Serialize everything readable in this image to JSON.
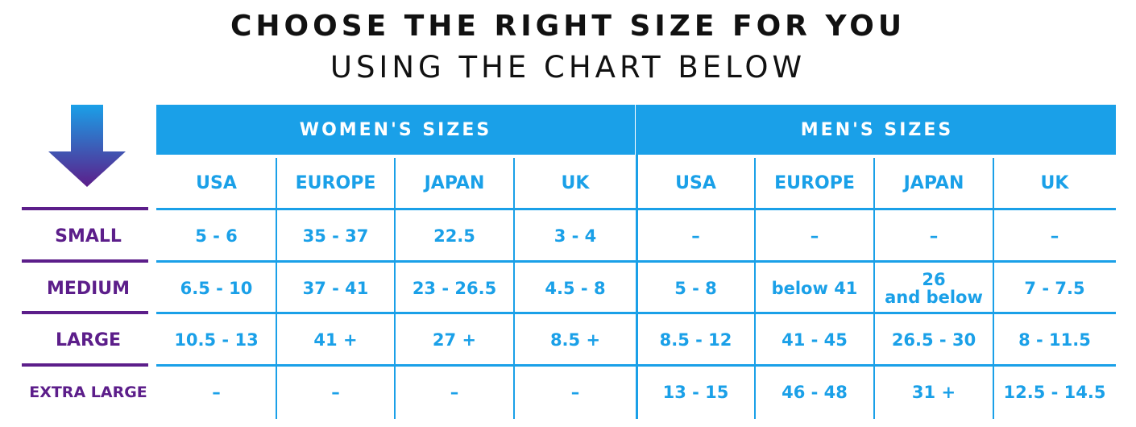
{
  "title": "CHOOSE THE RIGHT SIZE FOR YOU",
  "subtitle": "USING THE CHART BELOW",
  "colors": {
    "blue": "#1aa0e8",
    "purple": "#5c1e8a",
    "arrow_top": "#1aa0e8",
    "arrow_bottom": "#5c1e8a"
  },
  "icon": "arrow-down-icon",
  "chart_data": {
    "type": "table",
    "groups": [
      {
        "name": "WOMEN'S SIZES",
        "columns": [
          "USA",
          "EUROPE",
          "JAPAN",
          "UK"
        ]
      },
      {
        "name": "MEN'S SIZES",
        "columns": [
          "USA",
          "EUROPE",
          "JAPAN",
          "UK"
        ]
      }
    ],
    "rows": [
      {
        "label": "SMALL",
        "cells": [
          "5 - 6",
          "35 - 37",
          "22.5",
          "3 - 4",
          "–",
          "–",
          "–",
          "–"
        ]
      },
      {
        "label": "MEDIUM",
        "cells": [
          "6.5 - 10",
          "37 - 41",
          "23 - 26.5",
          "4.5 - 8",
          "5 - 8",
          "below 41",
          "26\nand below",
          "7 - 7.5"
        ]
      },
      {
        "label": "LARGE",
        "cells": [
          "10.5 - 13",
          "41 +",
          "27 +",
          "8.5 +",
          "8.5 - 12",
          "41 - 45",
          "26.5 - 30",
          "8 - 11.5"
        ]
      },
      {
        "label": "EXTRA LARGE",
        "cells": [
          "–",
          "–",
          "–",
          "–",
          "13 - 15",
          "46 - 48",
          "31 +",
          "12.5 - 14.5"
        ]
      }
    ]
  }
}
